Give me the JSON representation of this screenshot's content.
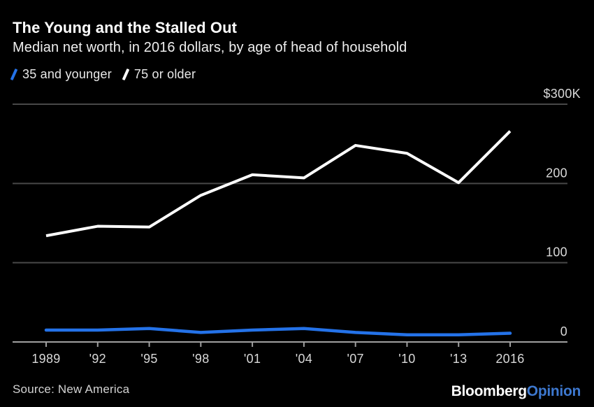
{
  "chart_data": {
    "type": "line",
    "title": "The Young and the Stalled Out",
    "subtitle": "Median net worth, in 2016 dollars, by age of head of household",
    "x": [
      1989,
      1992,
      1995,
      1998,
      2001,
      2004,
      2007,
      2010,
      2013,
      2016
    ],
    "x_tick_labels": [
      "1989",
      "'92",
      "'95",
      "'98",
      "'01",
      "'04",
      "'07",
      "'10",
      "'13",
      "2016"
    ],
    "series": [
      {
        "name": "35 and younger",
        "color": "#2472e8",
        "values": [
          15,
          15,
          17,
          12,
          15,
          17,
          12,
          9,
          9,
          11
        ]
      },
      {
        "name": "75 or older",
        "color": "#ffffff",
        "values": [
          134,
          146,
          145,
          185,
          211,
          207,
          248,
          238,
          201,
          266
        ]
      }
    ],
    "xlabel": "",
    "ylabel": "",
    "ylim": [
      0,
      300
    ],
    "y_ticks": [
      0,
      100,
      200,
      300
    ],
    "y_tick_labels": [
      "0",
      "100",
      "200",
      "$300K"
    ],
    "grid": "horizontal",
    "legend_position": "top-left"
  },
  "footer": {
    "source": "Source: New America",
    "logo": {
      "brand": "Bloomberg",
      "suffix": "Opinion",
      "suffix_color": "#3d78cf"
    }
  },
  "colors": {
    "background": "#000000",
    "title_text": "#ffffff",
    "subtitle_text": "#efefef",
    "legend_text": "#e8e8e8",
    "axis_label_text": "#d9d9d9",
    "gridline": "#484848",
    "axis_line": "#9f9f9f",
    "series_young": "#2472e8",
    "series_old": "#ffffff",
    "source_text": "#d3d3d3",
    "logo_brand": "#ffffff",
    "logo_opinion": "#3d78cf"
  }
}
